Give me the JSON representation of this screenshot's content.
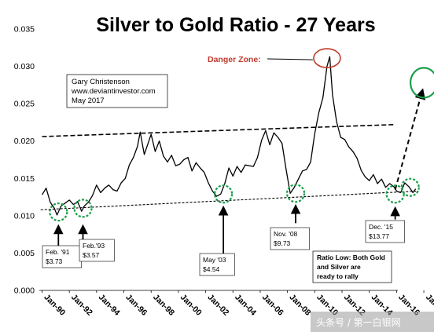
{
  "chart_data": {
    "type": "line",
    "title": "Silver to Gold Ratio - 27 Years",
    "xlabel": "",
    "ylabel": "",
    "ylim": [
      0.0,
      0.035
    ],
    "yticks": [
      "0.000",
      "0.005",
      "0.010",
      "0.015",
      "0.020",
      "0.025",
      "0.030",
      "0.035"
    ],
    "xticks": [
      "Jan-90",
      "Jan-92",
      "Jan-94",
      "Jan-96",
      "Jan-98",
      "Jan-00",
      "Jan-02",
      "Jan-04",
      "Jan-06",
      "Jan-08",
      "Jan-10",
      "Jan-12",
      "Jan-14",
      "Jan-16",
      "Jan-18"
    ],
    "xlim": [
      1989.8,
      2018.4
    ],
    "series": [
      {
        "color": "#000000",
        "x": [
          1990.0,
          1990.3,
          1990.6,
          1990.9,
          1991.1,
          1991.4,
          1991.7,
          1992.0,
          1992.3,
          1992.6,
          1992.9,
          1993.1,
          1993.4,
          1993.7,
          1994.0,
          1994.3,
          1994.6,
          1994.9,
          1995.2,
          1995.5,
          1995.8,
          1996.1,
          1996.4,
          1996.7,
          1997.0,
          1997.2,
          1997.5,
          1997.8,
          1998.0,
          1998.3,
          1998.6,
          1998.9,
          1999.2,
          1999.5,
          1999.8,
          2000.1,
          2000.4,
          2000.7,
          2001.0,
          2001.3,
          2001.6,
          2001.9,
          2002.2,
          2002.5,
          2002.8,
          2003.1,
          2003.4,
          2003.7,
          2004.0,
          2004.3,
          2004.6,
          2004.9,
          2005.2,
          2005.5,
          2005.8,
          2006.1,
          2006.4,
          2006.7,
          2007.0,
          2007.3,
          2007.6,
          2007.9,
          2008.2,
          2008.5,
          2008.8,
          2009.1,
          2009.4,
          2009.7,
          2010.0,
          2010.3,
          2010.6,
          2010.9,
          2011.1,
          2011.3,
          2011.6,
          2011.9,
          2012.2,
          2012.5,
          2012.8,
          2013.1,
          2013.4,
          2013.7,
          2014.0,
          2014.3,
          2014.6,
          2014.9,
          2015.2,
          2015.5,
          2015.8,
          2016.0,
          2016.3,
          2016.6,
          2016.9,
          2017.2,
          2017.4
        ],
        "y": [
          0.0128,
          0.0137,
          0.0118,
          0.011,
          0.0101,
          0.0113,
          0.0117,
          0.0121,
          0.0115,
          0.0119,
          0.0106,
          0.0113,
          0.0118,
          0.0127,
          0.0141,
          0.0131,
          0.0137,
          0.0141,
          0.0135,
          0.0133,
          0.0144,
          0.015,
          0.0168,
          0.0178,
          0.0193,
          0.0212,
          0.0182,
          0.0198,
          0.0209,
          0.0186,
          0.02,
          0.018,
          0.0172,
          0.0181,
          0.0167,
          0.0169,
          0.0175,
          0.0178,
          0.016,
          0.0171,
          0.0164,
          0.0158,
          0.0144,
          0.0133,
          0.0126,
          0.0129,
          0.0143,
          0.0164,
          0.0153,
          0.0166,
          0.0158,
          0.0168,
          0.0167,
          0.0166,
          0.0178,
          0.0201,
          0.0214,
          0.0195,
          0.0211,
          0.0205,
          0.0197,
          0.0162,
          0.013,
          0.0138,
          0.0149,
          0.016,
          0.0162,
          0.0172,
          0.021,
          0.0238,
          0.0258,
          0.03,
          0.0313,
          0.0262,
          0.0226,
          0.0205,
          0.0202,
          0.0192,
          0.0186,
          0.0177,
          0.0161,
          0.0152,
          0.0147,
          0.0155,
          0.0143,
          0.0149,
          0.0138,
          0.0143,
          0.0139,
          0.0133,
          0.0131,
          0.0144,
          0.0139,
          0.0131,
          0.0136
        ]
      }
    ],
    "trendlines": [
      {
        "style": "dashed",
        "x": [
          1990.0,
          2015.8
        ],
        "y": [
          0.0206,
          0.0222
        ]
      },
      {
        "style": "dashed",
        "x": [
          1989.9,
          2017.6
        ],
        "y": [
          0.0108,
          0.0133
        ]
      },
      {
        "style": "dashed-arrow",
        "x": [
          2015.9,
          2017.9
        ],
        "y": [
          0.0135,
          0.0268
        ]
      }
    ],
    "highlighted_lows": [
      {
        "x": 1991.2,
        "y": 0.0105
      },
      {
        "x": 1993.0,
        "y": 0.011
      },
      {
        "x": 2003.3,
        "y": 0.0129
      },
      {
        "x": 2008.6,
        "y": 0.013
      },
      {
        "x": 2015.9,
        "y": 0.0129
      },
      {
        "x": 2017.0,
        "y": 0.0138
      }
    ],
    "danger_circle": {
      "x": 2010.9,
      "y": 0.0311
    },
    "target_circle": {
      "x": 2018.0,
      "y": 0.0276
    },
    "callouts": [
      {
        "lines": [
          "Feb. '91",
          "$3.73"
        ],
        "arrow_x": 1991.2,
        "arrow_y": [
          0.0086,
          0.006
        ]
      },
      {
        "lines": [
          "Feb.'93",
          "$3.57"
        ],
        "arrow_x": 1993.0,
        "arrow_y": [
          0.0086,
          0.0062
        ]
      },
      {
        "lines": [
          "May '03",
          "$4.54"
        ],
        "arrow_x": 2003.3,
        "arrow_y": [
          0.0111,
          0.0045
        ]
      },
      {
        "lines": [
          "Nov. '08",
          "$9.73"
        ],
        "arrow_x": 2008.6,
        "arrow_y": [
          0.0113,
          0.009
        ]
      },
      {
        "lines": [
          "Dec. '15",
          "$13.77"
        ],
        "arrow_x": 2015.9,
        "arrow_y": [
          0.011,
          0.0095
        ]
      }
    ],
    "ratio_low_note": [
      "Ratio Low: Both Gold",
      "and Silver  are",
      "ready to rally"
    ],
    "credit": [
      "Gary Christenson",
      "www.deviantinvestor.com",
      "May 2017"
    ],
    "danger_label": "Danger Zone:",
    "colors": {
      "line": "#000000",
      "low_circles": "#1a9e4a",
      "danger": "#c0392b",
      "target": "#1a9e4a"
    }
  },
  "watermark": "头条号 / 第一白银网"
}
